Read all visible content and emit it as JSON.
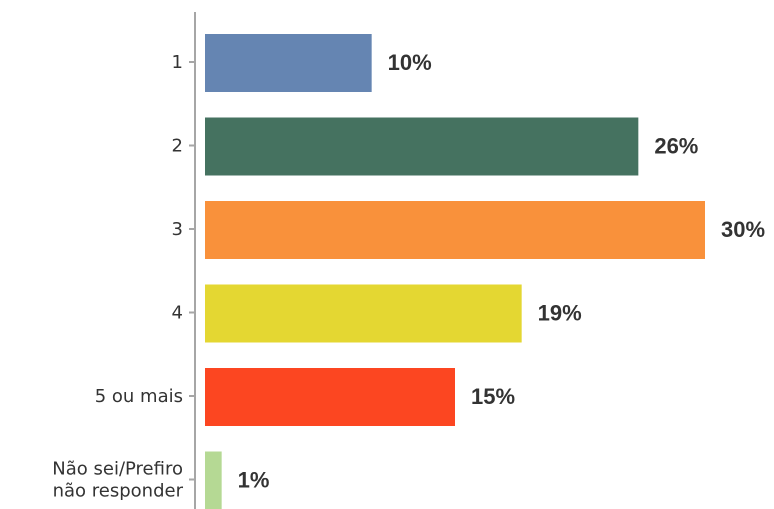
{
  "chart_data": {
    "type": "bar",
    "orientation": "horizontal",
    "categories": [
      [
        "1"
      ],
      [
        "2"
      ],
      [
        "3"
      ],
      [
        "4"
      ],
      [
        "5 ou mais"
      ],
      [
        "Não sei/Prefiro",
        "não responder"
      ]
    ],
    "values": [
      10,
      26,
      30,
      19,
      15,
      1
    ],
    "value_labels": [
      "10%",
      "26%",
      "30%",
      "19%",
      "15%",
      "1%"
    ],
    "colors": [
      "#6585b2",
      "#457260",
      "#f9913b",
      "#e4d732",
      "#fc4621",
      "#b5d994"
    ],
    "xlim": [
      0,
      30
    ],
    "grid": false,
    "legend": "none"
  }
}
